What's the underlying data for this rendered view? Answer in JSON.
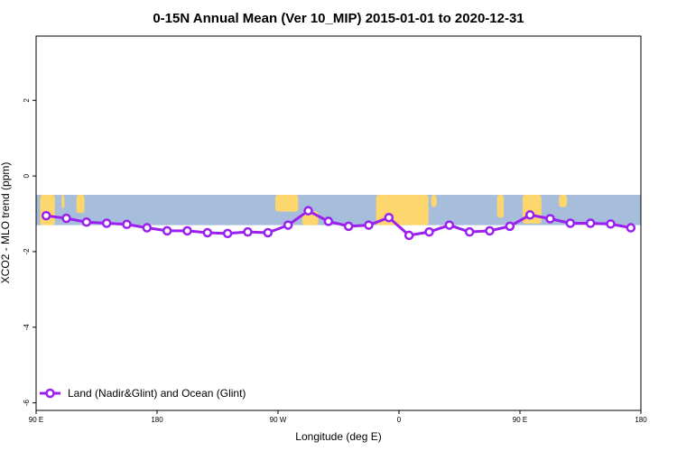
{
  "chart_data": {
    "type": "line",
    "title": "0-15N Annual Mean (Ver 10_MIP)   2015-01-01 to 2020-12-31",
    "xlabel": "Longitude (deg E)",
    "ylabel": "XCO2 - MLO trend (ppm)",
    "x_ticks": [
      {
        "value": 90,
        "label": "90 E"
      },
      {
        "value": 180,
        "label": "180"
      },
      {
        "value": 270,
        "label": "90 W"
      },
      {
        "value": 360,
        "label": "0"
      },
      {
        "value": 450,
        "label": "90 E"
      },
      {
        "value": 540,
        "label": "180"
      }
    ],
    "y_ticks": [
      {
        "value": 2,
        "label": "2"
      },
      {
        "value": 0,
        "label": "0"
      },
      {
        "value": -2,
        "label": "-2"
      },
      {
        "value": -4,
        "label": "-4"
      },
      {
        "value": -6,
        "label": "-6"
      }
    ],
    "xlim": [
      90,
      540
    ],
    "ylim": [
      -6.2,
      3.7
    ],
    "grid": false,
    "legend_position": "bottom-left",
    "background_map": {
      "latitude_range": "0-15N",
      "ocean_color": "#a7bddc",
      "land_color": "#fdd66e",
      "y_band": [
        -1.3,
        -0.5
      ]
    },
    "series": [
      {
        "name": "Land (Nadir&Glint) and Ocean (Glint)",
        "color": "#9b1ff0",
        "x": [
          97.5,
          112.5,
          127.5,
          142.5,
          157.5,
          172.5,
          187.5,
          202.5,
          217.5,
          232.5,
          247.5,
          262.5,
          277.5,
          292.5,
          307.5,
          322.5,
          337.5,
          352.5,
          367.5,
          382.5,
          397.5,
          412.5,
          427.5,
          442.5,
          457.5,
          472.5,
          487.5,
          502.5,
          517.5,
          532.5
        ],
        "values": [
          -1.05,
          -1.12,
          -1.22,
          -1.25,
          -1.28,
          -1.37,
          -1.45,
          -1.45,
          -1.5,
          -1.52,
          -1.48,
          -1.5,
          -1.3,
          -0.92,
          -1.2,
          -1.33,
          -1.3,
          -1.1,
          -1.57,
          -1.48,
          -1.3,
          -1.48,
          -1.45,
          -1.33,
          -1.03,
          -1.13,
          -1.25,
          -1.25,
          -1.27,
          -1.37
        ]
      }
    ]
  }
}
